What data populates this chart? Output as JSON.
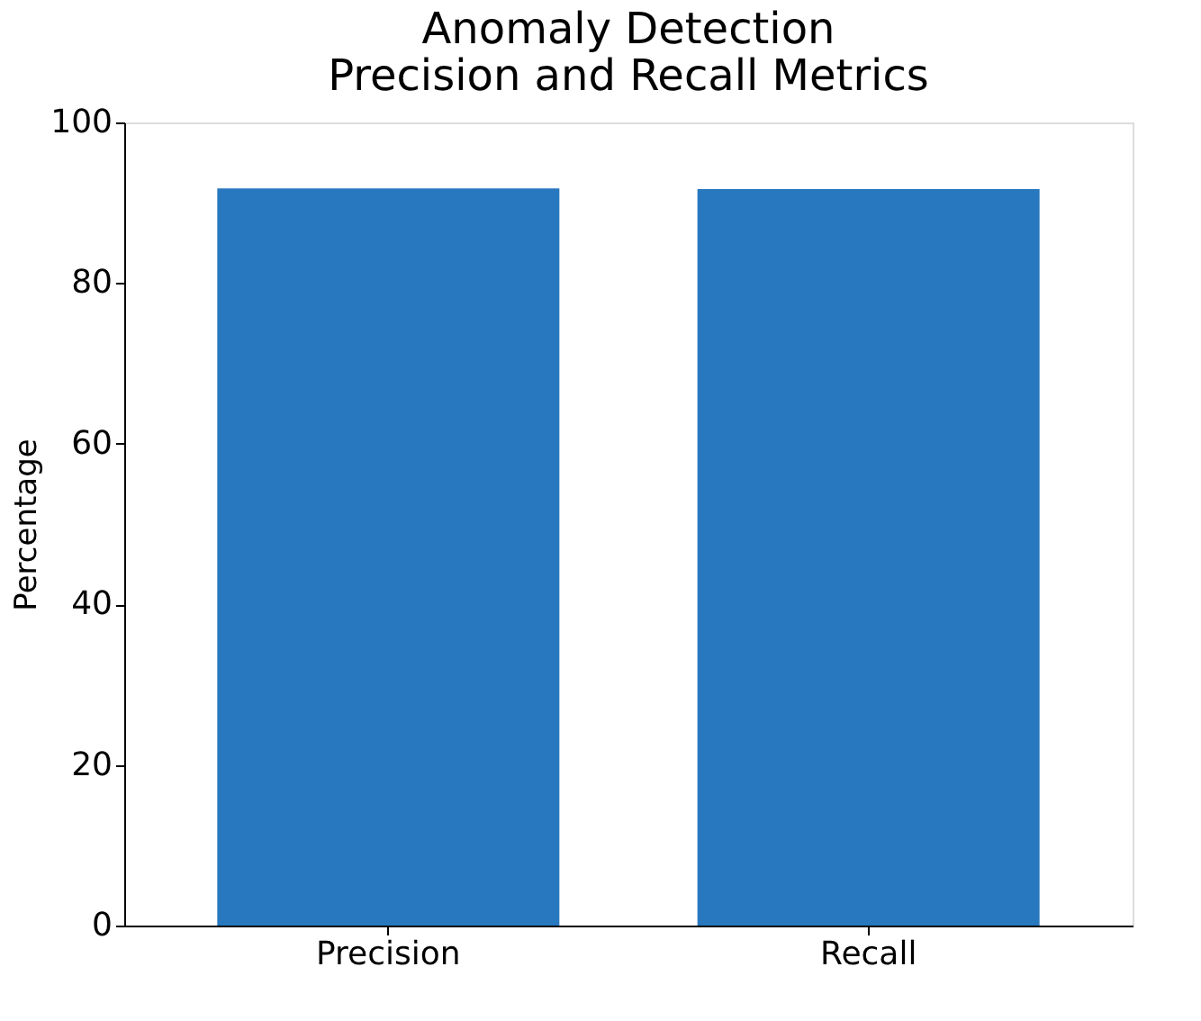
{
  "chart_data": {
    "type": "bar",
    "title": "Anomaly Detection\nPrecision and Recall Metrics",
    "ylabel": "Percentage",
    "categories": [
      "Precision",
      "Recall"
    ],
    "values": [
      91.8,
      91.7
    ],
    "color": "#2878bf",
    "ylim": [
      0,
      100
    ],
    "yticks": [
      0,
      20,
      40,
      60,
      80,
      100
    ],
    "grid": false
  }
}
